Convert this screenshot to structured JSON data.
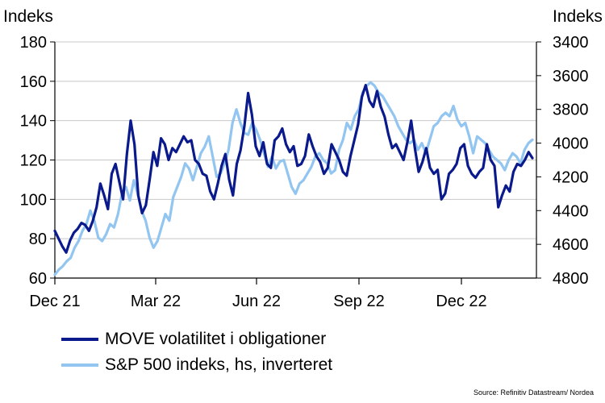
{
  "chart_data": {
    "type": "line",
    "y_left_title": "Indeks",
    "y_right_title": "Indeks",
    "y_left_range": [
      60,
      180
    ],
    "y_left_ticks": [
      "180",
      "160",
      "140",
      "120",
      "100",
      "80",
      "60"
    ],
    "y_right_range": [
      3400,
      4800
    ],
    "y_right_inverted": true,
    "y_right_ticks": [
      "3400",
      "3600",
      "3800",
      "4000",
      "4200",
      "4400",
      "4600",
      "4800"
    ],
    "x_ticks": [
      "Dec 21",
      "Mar 22",
      "Jun 22",
      "Sep 22",
      "Dec 22"
    ],
    "gridlines": "horizontal",
    "legend_position": "bottom-left",
    "series": [
      {
        "name": "MOVE volatilitet i obligationer",
        "axis": "left",
        "color": "#0a1a8c",
        "values": [
          84,
          80,
          76,
          73,
          79,
          83,
          85,
          88,
          87,
          84,
          89,
          96,
          108,
          102,
          95,
          113,
          118,
          109,
          100,
          123,
          140,
          128,
          102,
          93,
          97,
          110,
          124,
          117,
          131,
          128,
          120,
          126,
          124,
          128,
          132,
          129,
          130,
          120,
          118,
          113,
          112,
          104,
          100,
          108,
          117,
          123,
          110,
          102,
          118,
          125,
          137,
          154,
          143,
          127,
          122,
          129,
          118,
          116,
          130,
          132,
          136,
          128,
          124,
          127,
          117,
          118,
          122,
          133,
          127,
          122,
          119,
          113,
          116,
          128,
          124,
          120,
          114,
          112,
          122,
          130,
          138,
          152,
          158,
          150,
          147,
          155,
          147,
          142,
          133,
          126,
          128,
          124,
          120,
          129,
          140,
          126,
          114,
          119,
          126,
          116,
          113,
          115,
          100,
          103,
          113,
          115,
          118,
          126,
          128,
          117,
          113,
          111,
          114,
          116,
          128,
          120,
          117,
          96,
          102,
          107,
          104,
          114,
          118,
          117,
          120,
          124,
          121
        ]
      },
      {
        "name": "S&P 500 indeks, hs, inverteret",
        "axis": "right",
        "color": "#92c5f0",
        "values": [
          4780,
          4750,
          4730,
          4700,
          4680,
          4620,
          4580,
          4520,
          4480,
          4400,
          4460,
          4560,
          4580,
          4540,
          4480,
          4500,
          4420,
          4300,
          4260,
          4340,
          4220,
          4300,
          4400,
          4460,
          4560,
          4620,
          4580,
          4500,
          4420,
          4460,
          4320,
          4260,
          4200,
          4120,
          4150,
          4220,
          4140,
          4060,
          4020,
          3960,
          4080,
          4200,
          4180,
          4120,
          4040,
          3880,
          3800,
          3880,
          3940,
          3950,
          3880,
          3920,
          3980,
          4060,
          4140,
          4080,
          4150,
          4110,
          4100,
          4180,
          4260,
          4300,
          4240,
          4220,
          4180,
          4140,
          4080,
          4060,
          4100,
          4120,
          4180,
          4160,
          4040,
          3980,
          3880,
          3920,
          3840,
          3800,
          3700,
          3660,
          3640,
          3660,
          3700,
          3720,
          3760,
          3800,
          3840,
          3900,
          3940,
          3980,
          4000,
          3980,
          4040,
          4000,
          4060,
          3980,
          3900,
          3880,
          3840,
          3820,
          3840,
          3780,
          3860,
          3900,
          3880,
          3960,
          4060,
          3960,
          3980,
          4000,
          4040,
          4080,
          4100,
          4120,
          4160,
          4100,
          4060,
          4080,
          4120,
          4040,
          4000,
          3980
        ]
      }
    ]
  },
  "source": "Source: Refinitiv Datastream/ Nordea"
}
